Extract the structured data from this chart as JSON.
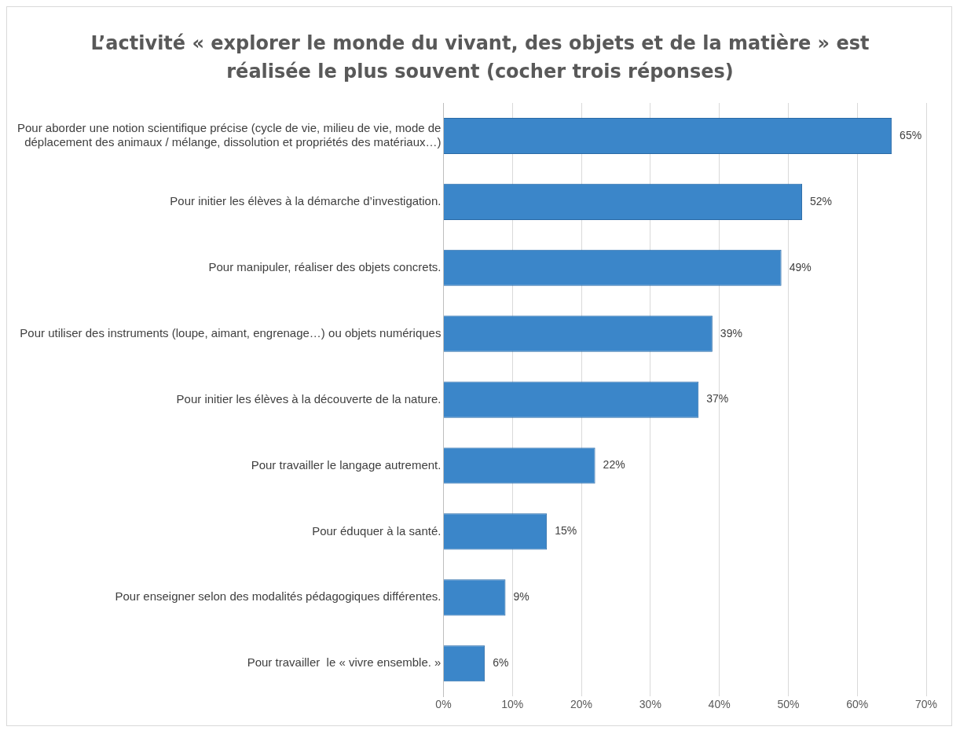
{
  "chart_data": {
    "type": "bar",
    "orientation": "horizontal",
    "title": "L’activité « explorer le monde du vivant, des objets et de la matière » est réalisée le plus souvent (cocher trois réponses)",
    "categories": [
      "Pour aborder une notion scientifique précise (cycle de vie, milieu de vie, mode de déplacement des animaux / mélange, dissolution et propriétés des matériaux…)",
      "Pour initier les élèves à la démarche d’investigation.",
      "Pour manipuler, réaliser des objets concrets.",
      "Pour utiliser des instruments (loupe, aimant, engrenage…) ou objets numériques",
      "Pour initier les élèves à la découverte de la nature.",
      "Pour travailler le langage autrement.",
      "Pour éduquer à la santé.",
      "Pour enseigner selon des modalités pédagogiques différentes.",
      "Pour travailler  le « vivre ensemble. »"
    ],
    "values": [
      65,
      52,
      49,
      39,
      37,
      22,
      15,
      9,
      6
    ],
    "value_labels": [
      "65%",
      "52%",
      "49%",
      "39%",
      "37%",
      "22%",
      "15%",
      "9%",
      "6%"
    ],
    "color": "#3b86c9",
    "xlim": [
      0,
      70
    ],
    "xticks": [
      {
        "value": 0,
        "label": "0%"
      },
      {
        "value": 10,
        "label": "10%"
      },
      {
        "value": 20,
        "label": "20%"
      },
      {
        "value": 30,
        "label": "30%"
      },
      {
        "value": 40,
        "label": "40%"
      },
      {
        "value": 50,
        "label": "50%"
      },
      {
        "value": 60,
        "label": "60%"
      },
      {
        "value": 70,
        "label": "70%"
      }
    ],
    "grid": "x"
  }
}
